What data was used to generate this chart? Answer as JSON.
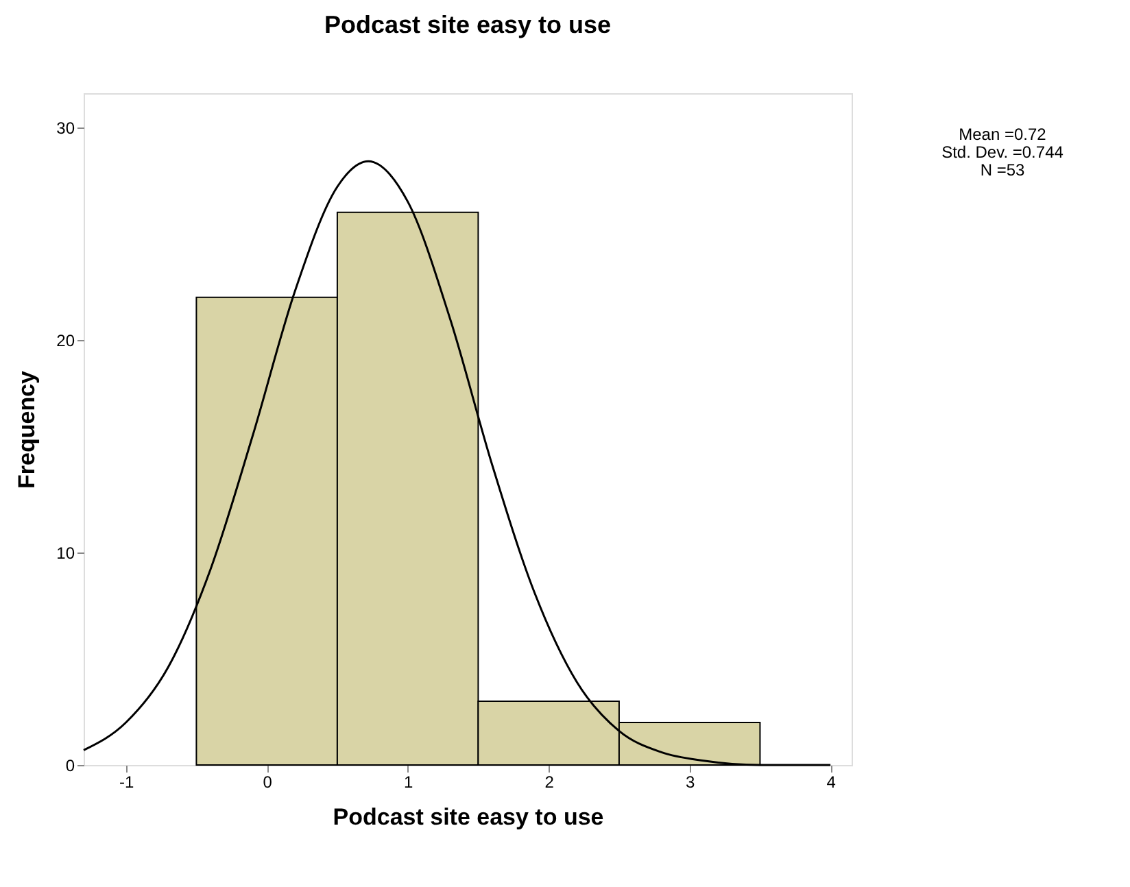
{
  "chart_data": {
    "type": "histogram",
    "title": "Podcast site easy to use",
    "xlabel": "Podcast site easy to use",
    "ylabel": "Frequency",
    "bins": [
      -0.5,
      0.5,
      1.5,
      2.5,
      3.5
    ],
    "values": [
      22,
      26,
      3,
      2
    ],
    "color": "#d9d4a6",
    "series": [
      {
        "type": "line",
        "color": "#000000",
        "x": [
          -1.3,
          -1.0,
          -0.7,
          -0.4,
          -0.1,
          0.2,
          0.5,
          0.72,
          1.0,
          1.3,
          1.6,
          1.9,
          2.2,
          2.5,
          2.8,
          3.1,
          3.5,
          4.0
        ],
        "values": [
          0.7,
          2.0,
          4.6,
          9.2,
          15.5,
          22.3,
          27.2,
          28.4,
          26.5,
          21.0,
          14.1,
          8.1,
          3.9,
          1.6,
          0.6,
          0.2,
          0.0,
          0.0
        ]
      }
    ],
    "xlim": [
      -1.3,
      4.15
    ],
    "ylim": [
      0,
      31.6
    ],
    "xticks": [
      -1,
      0,
      1,
      2,
      3,
      4
    ],
    "yticks": [
      0,
      10,
      20,
      30
    ],
    "grid": false,
    "annotations": [
      "Mean =0.72",
      "Std. Dev. =0.744",
      "N =53"
    ]
  }
}
